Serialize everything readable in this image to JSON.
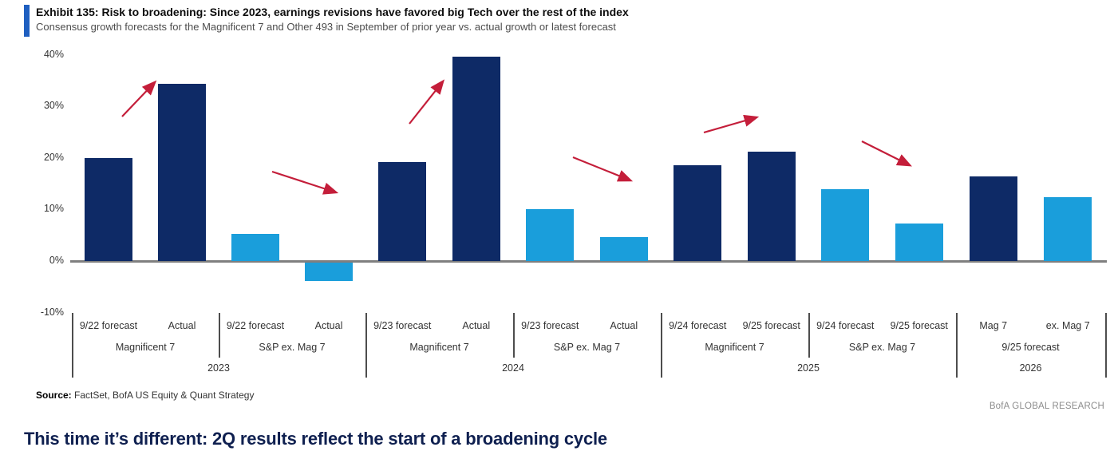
{
  "header": {
    "exhibit_title": "Exhibit 135: Risk to broadening: Since 2023, earnings revisions have favored big Tech over the rest of the index",
    "subtitle": "Consensus growth forecasts for the Magnificent 7 and Other 493 in September of prior year vs. actual growth or latest forecast"
  },
  "colors": {
    "accent_bar": "#1f5fc0",
    "mag7_bar": "#0e2a66",
    "ex_mag7_bar": "#1a9edb",
    "arrow_red": "#c41e3a",
    "headline_navy": "#0f2050"
  },
  "chart_data": {
    "type": "bar",
    "title": "Consensus growth forecasts: Magnificent 7 vs Other 493",
    "unit": "%",
    "ylim": [
      -10,
      40
    ],
    "grid": false,
    "legend": "none",
    "yticks": [
      "40%",
      "30%",
      "20%",
      "10%",
      "0%",
      "-10%"
    ],
    "ytick_values": [
      40,
      30,
      20,
      10,
      0,
      -10
    ],
    "series_colors": {
      "mag7": "#0e2a66",
      "ex_mag7": "#1a9edb"
    },
    "groups": [
      {
        "year": "2023",
        "subgroups": [
          {
            "label": "Magnificent 7",
            "series": "mag7",
            "bars": [
              {
                "label": "9/22 forecast",
                "value": 20
              },
              {
                "label": "Actual",
                "value": 34.3
              }
            ]
          },
          {
            "label": "S&P ex. Mag 7",
            "series": "ex_mag7",
            "bars": [
              {
                "label": "9/22 forecast",
                "value": 5.3
              },
              {
                "label": "Actual",
                "value": -3.6
              }
            ]
          }
        ]
      },
      {
        "year": "2024",
        "subgroups": [
          {
            "label": "Magnificent 7",
            "series": "mag7",
            "bars": [
              {
                "label": "9/23 forecast",
                "value": 19.2
              },
              {
                "label": "Actual",
                "value": 39.6
              }
            ]
          },
          {
            "label": "S&P ex. Mag 7",
            "series": "ex_mag7",
            "bars": [
              {
                "label": "9/23 forecast",
                "value": 10
              },
              {
                "label": "Actual",
                "value": 4.7
              }
            ]
          }
        ]
      },
      {
        "year": "2025",
        "subgroups": [
          {
            "label": "Magnificent 7",
            "series": "mag7",
            "bars": [
              {
                "label": "9/24 forecast",
                "value": 18.5
              },
              {
                "label": "9/25 forecast",
                "value": 21.2
              }
            ]
          },
          {
            "label": "S&P ex. Mag 7",
            "series": "ex_mag7",
            "bars": [
              {
                "label": "9/24 forecast",
                "value": 13.9
              },
              {
                "label": "9/25 forecast",
                "value": 7.2
              }
            ]
          }
        ]
      },
      {
        "year": "2026",
        "subgroups": [
          {
            "label": "9/25 forecast",
            "series": "mag7",
            "bars": [
              {
                "label": "Mag 7",
                "value": 16.4,
                "series": "mag7"
              },
              {
                "label": "ex. Mag 7",
                "value": 12.4,
                "series": "ex_mag7"
              }
            ]
          }
        ]
      }
    ],
    "annotations": {
      "arrow_color": "#c41e3a",
      "arrows": [
        {
          "dir": "up",
          "from": [
            153,
            146
          ],
          "to": [
            194,
            103
          ]
        },
        {
          "dir": "down",
          "from": [
            341,
            215
          ],
          "to": [
            421,
            241
          ]
        },
        {
          "dir": "up",
          "from": [
            513,
            155
          ],
          "to": [
            555,
            102
          ]
        },
        {
          "dir": "down",
          "from": [
            718,
            197
          ],
          "to": [
            790,
            226
          ]
        },
        {
          "dir": "up",
          "from": [
            882,
            166
          ],
          "to": [
            948,
            147
          ]
        },
        {
          "dir": "down",
          "from": [
            1080,
            177
          ],
          "to": [
            1140,
            207
          ]
        }
      ]
    }
  },
  "footer": {
    "source_label": "Source:",
    "source_text": " FactSet, BofA US Equity & Quant Strategy",
    "brand": "BofA GLOBAL RESEARCH",
    "headline": "This time it’s different: 2Q results reflect the start of a broadening cycle"
  }
}
